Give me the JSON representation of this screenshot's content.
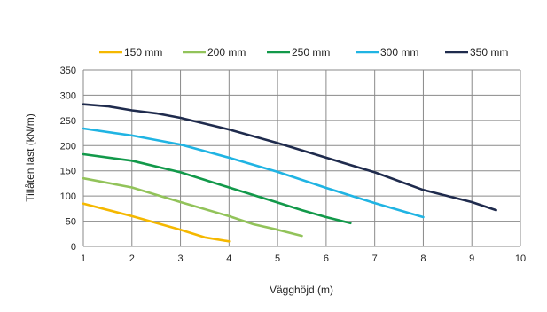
{
  "chart_data": {
    "type": "line",
    "xlabel": "Vägghöjd (m)",
    "ylabel": "Tillåten last (kN/m)",
    "xlim": [
      1,
      10
    ],
    "ylim": [
      0,
      350
    ],
    "x_ticks": [
      1,
      2,
      3,
      4,
      5,
      6,
      7,
      8,
      9,
      10
    ],
    "y_ticks": [
      0,
      50,
      100,
      150,
      200,
      250,
      300,
      350
    ],
    "grid": true,
    "legend_position": "top",
    "series": [
      {
        "name": "150 mm",
        "color": "#f5b800",
        "x": [
          1,
          2,
          3,
          3.5,
          4
        ],
        "y": [
          85,
          60,
          33,
          18,
          10
        ]
      },
      {
        "name": "200 mm",
        "color": "#92c35a",
        "x": [
          1,
          2,
          3,
          4,
          4.5,
          5,
          5.5
        ],
        "y": [
          135,
          117,
          88,
          60,
          44,
          33,
          21
        ]
      },
      {
        "name": "250 mm",
        "color": "#12994a",
        "x": [
          1,
          2,
          3,
          4,
          5,
          5.5,
          6,
          6.5
        ],
        "y": [
          183,
          170,
          147,
          117,
          87,
          72,
          58,
          46
        ]
      },
      {
        "name": "300 mm",
        "color": "#20b4e3",
        "x": [
          1,
          2,
          3,
          4,
          5,
          6,
          7,
          8
        ],
        "y": [
          234,
          220,
          202,
          176,
          148,
          116,
          86,
          58
        ]
      },
      {
        "name": "350 mm",
        "color": "#1f2b4d",
        "x": [
          1,
          1.5,
          2,
          2.5,
          3,
          4,
          5,
          6,
          7,
          8,
          9,
          9.5
        ],
        "y": [
          282,
          278,
          270,
          264,
          255,
          232,
          205,
          176,
          147,
          112,
          88,
          72
        ]
      }
    ]
  }
}
